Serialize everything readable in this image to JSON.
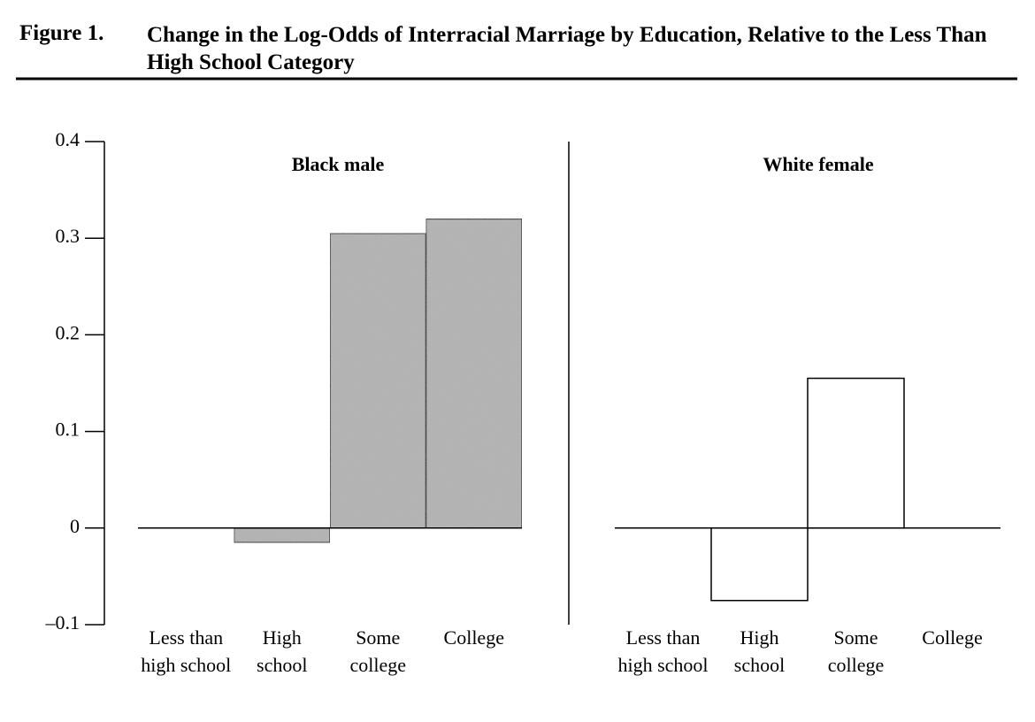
{
  "figure": {
    "label": "Figure 1.",
    "title": "Change in the Log-Odds of Interracial Marriage by Education, Relative to the Less Than High School Category"
  },
  "chart_data": [
    {
      "type": "bar",
      "title": "Black male",
      "categories": [
        "Less than\nhigh school",
        "High\nschool",
        "Some\ncollege",
        "College"
      ],
      "values": [
        0,
        -0.015,
        0.305,
        0.32
      ],
      "color": "#b4b4b4",
      "ylim": [
        -0.1,
        0.4
      ],
      "yticks": [
        {
          "value": -0.1,
          "label": "–0.1"
        },
        0,
        0.1,
        0.2,
        0.3,
        0.4
      ]
    },
    {
      "type": "bar",
      "title": "White female",
      "categories": [
        "Less than\nhigh school",
        "High\nschool",
        "Some\ncollege",
        "College"
      ],
      "values": [
        0,
        -0.075,
        0.155,
        0
      ],
      "color": "#ffffff",
      "ylim": [
        -0.1,
        0.4
      ]
    }
  ]
}
